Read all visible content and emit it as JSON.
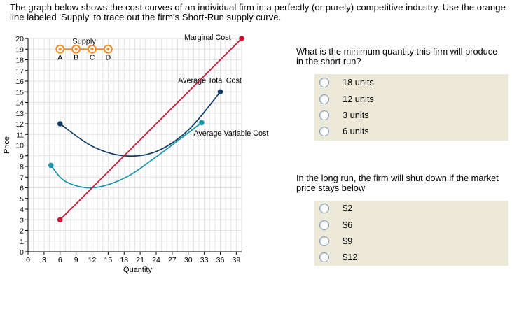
{
  "instructions": "The graph below shows the cost curves of an individual firm in a perfectly (or purely) competitive industry. Use the orange line labeled 'Supply' to trace out the firm's Short-Run supply curve.",
  "chart_data": {
    "type": "line",
    "xlabel": "Quantity",
    "ylabel": "Price",
    "xlim": [
      0,
      40
    ],
    "ylim": [
      0,
      20
    ],
    "x_ticks": [
      "0",
      "3",
      "6",
      "9",
      "12",
      "15",
      "18",
      "21",
      "24",
      "27",
      "30",
      "33",
      "36",
      "39"
    ],
    "y_ticks": [
      "0",
      "1",
      "2",
      "3",
      "4",
      "5",
      "6",
      "7",
      "8",
      "9",
      "10",
      "11",
      "12",
      "13",
      "14",
      "15",
      "16",
      "17",
      "18",
      "19",
      "20"
    ],
    "grid": true,
    "series": [
      {
        "name": "Marginal Cost",
        "color": "#cc1133",
        "shape": "line",
        "x": [
          6,
          40
        ],
        "y": [
          3,
          20
        ]
      },
      {
        "name": "Average Total Cost",
        "color": "#0d3b66",
        "shape": "curve",
        "x": [
          6,
          12,
          18,
          24,
          30,
          36
        ],
        "y": [
          12,
          9.9,
          9,
          9.4,
          11.4,
          15
        ]
      },
      {
        "name": "Average Variable Cost",
        "color": "#1a93a8",
        "shape": "curve",
        "x": [
          4.3,
          7,
          12,
          18,
          24,
          32.5
        ],
        "y": [
          8.1,
          6.6,
          6,
          6.9,
          8.9,
          12.1
        ]
      }
    ],
    "supply_tool": {
      "label": "Supply",
      "color": "#f28c28",
      "points": [
        "A",
        "B",
        "C",
        "D"
      ],
      "x": [
        6,
        9,
        12,
        15
      ],
      "y": [
        19,
        19,
        19,
        19
      ]
    }
  },
  "questions": [
    {
      "prompt": "What is the minimum quantity this firm will produce in the short run?",
      "options": [
        "18 units",
        "12 units",
        "3 units",
        "6 units"
      ]
    },
    {
      "prompt": "In the long run, the firm will shut down if the market price stays below",
      "options": [
        "$2",
        "$6",
        "$9",
        "$12"
      ]
    }
  ]
}
